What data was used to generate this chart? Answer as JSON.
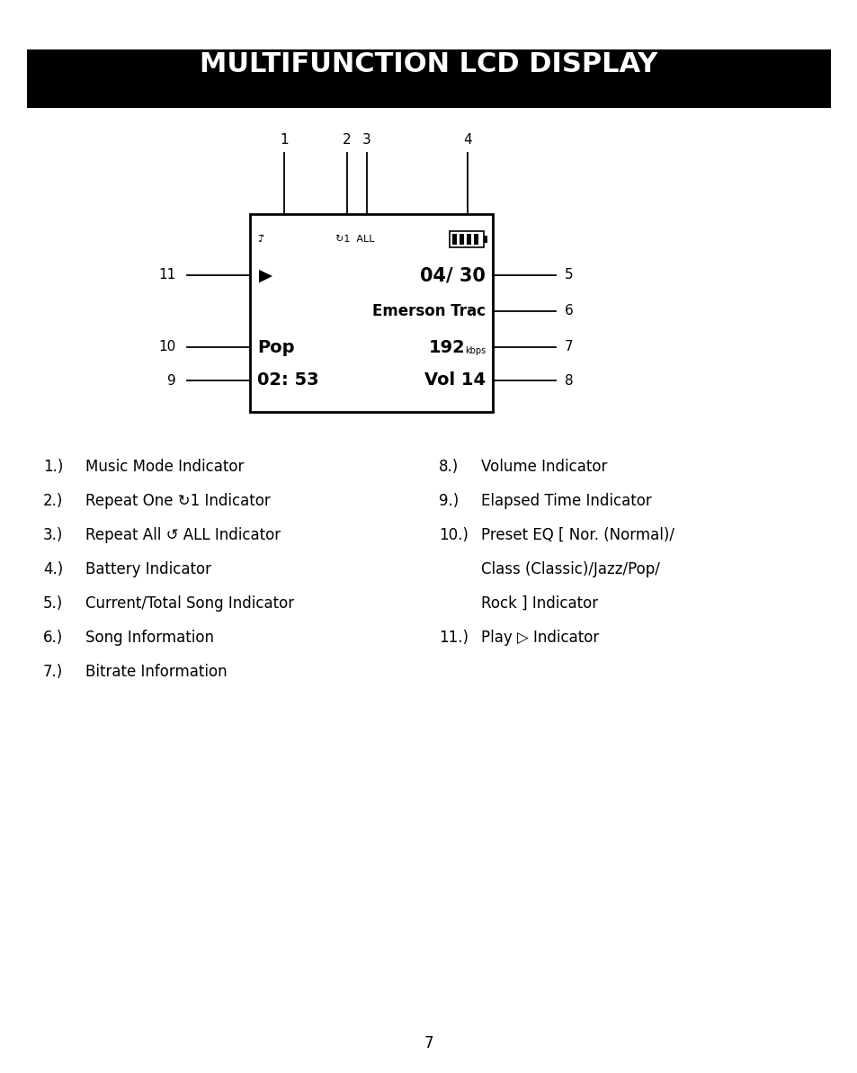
{
  "title": "MULTIFUNCTION LCD DISPLAY",
  "title_bg": "#000000",
  "title_color": "#ffffff",
  "page_number": "7",
  "legend_left": [
    {
      "num": "1.)",
      "text": "Music Mode Indicator"
    },
    {
      "num": "2.)",
      "text": "Repeat One ↻1 Indicator"
    },
    {
      "num": "3.)",
      "text": "Repeat All ↺ ALL Indicator"
    },
    {
      "num": "4.)",
      "text": "Battery Indicator"
    },
    {
      "num": "5.)",
      "text": "Current/Total Song Indicator"
    },
    {
      "num": "6.)",
      "text": "Song Information"
    },
    {
      "num": "7.)",
      "text": "Bitrate Information"
    }
  ],
  "legend_right": [
    {
      "num": "8.)",
      "text": "Volume Indicator",
      "extra": []
    },
    {
      "num": "9.)",
      "text": "Elapsed Time Indicator",
      "extra": []
    },
    {
      "num": "10.)",
      "text": "Preset EQ [ Nor. (Normal)/",
      "extra": [
        "Class (Classic)/Jazz/Pop/",
        "Rock ] Indicator"
      ]
    },
    {
      "num": "11.)",
      "text": "Play ▷ Indicator",
      "extra": []
    }
  ]
}
